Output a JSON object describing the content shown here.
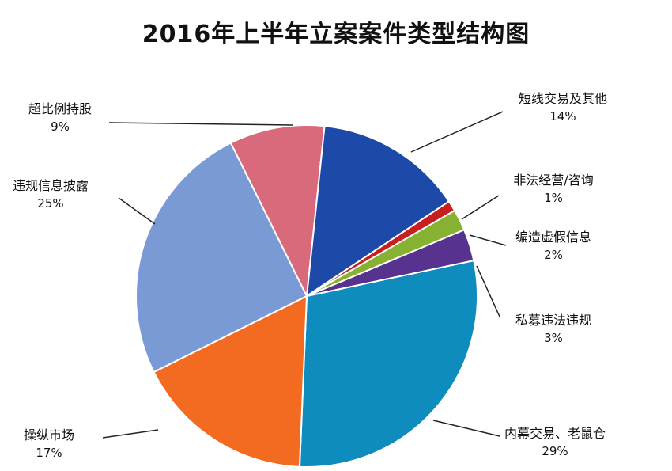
{
  "chart_data": {
    "type": "pie",
    "title": "2016年上半年立案案件类型结构图",
    "start_category": "内幕交易、老鼠仓",
    "slices": [
      {
        "label": "内幕交易、老鼠仓",
        "value": 29,
        "value_label": "29%",
        "color": "#0e8cbd"
      },
      {
        "label": "操纵市场",
        "value": 17,
        "value_label": "17%",
        "color": "#f36a21"
      },
      {
        "label": "违规信息披露",
        "value": 25,
        "value_label": "25%",
        "color": "#7a9ad6"
      },
      {
        "label": "超比例持股",
        "value": 9,
        "value_label": "9%",
        "color": "#d96a7c"
      },
      {
        "label": "短线交易及其他",
        "value": 14,
        "value_label": "14%",
        "color": "#1d4aa9"
      },
      {
        "label": "非法经营/咨询",
        "value": 1,
        "value_label": "1%",
        "color": "#c81e1e"
      },
      {
        "label": "编造虚假信息",
        "value": 2,
        "value_label": "2%",
        "color": "#86b131"
      },
      {
        "label": "私募违法违规",
        "value": 3,
        "value_label": "3%",
        "color": "#57328e"
      }
    ]
  }
}
